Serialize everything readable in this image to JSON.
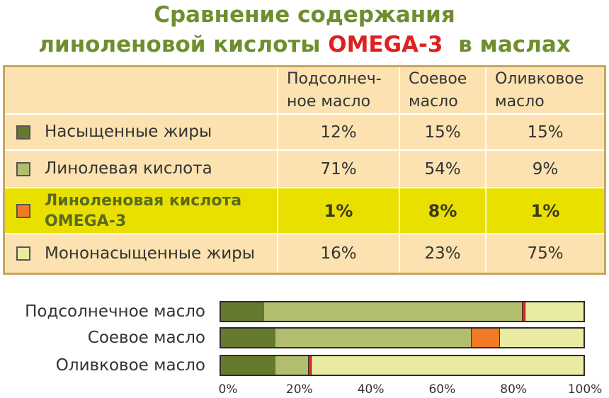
{
  "title": {
    "line1": "Сравнение содержания",
    "line2_before": "линоленовой кислоты ",
    "line2_omega": "OMEGA-3",
    "line2_after": "  в маслах"
  },
  "colors": {
    "saturated": "#667a2e",
    "linoleic": "#b2bd6e",
    "omega3": "#f07b24",
    "monounsaturated": "#eaeba2",
    "title": "#6f8e2e",
    "omega_text": "#e0201e",
    "table_bg": "#fbe2b0",
    "highlight_bg": "#eae000"
  },
  "table": {
    "columns": [
      "Подсолнеч-\nное масло",
      "Соевое\nмасло",
      "Оливковое\nмасло"
    ],
    "rows": [
      {
        "label": "Насыщенные жиры",
        "swatch": "#667a2e",
        "values": [
          "12%",
          "15%",
          "15%"
        ]
      },
      {
        "label": "Линолевая кислота",
        "swatch": "#b2bd6e",
        "values": [
          "71%",
          "54%",
          "9%"
        ]
      },
      {
        "label": "Линоленовая кислота\nOMEGA-3",
        "swatch": "#f07b24",
        "values": [
          "1%",
          "8%",
          "1%"
        ],
        "highlight": true
      },
      {
        "label": "Мононасыщенные жиры",
        "swatch": "#eaeba2",
        "values": [
          "16%",
          "23%",
          "75%"
        ]
      }
    ]
  },
  "chart_data": {
    "type": "bar",
    "stacked": true,
    "orientation": "horizontal",
    "categories": [
      "Подсолнечное масло",
      "Соевое масло",
      "Оливковое масло"
    ],
    "series": [
      {
        "name": "Насыщенные жиры",
        "color": "#667a2e",
        "values": [
          12,
          15,
          15
        ]
      },
      {
        "name": "Линолевая кислота",
        "color": "#b2bd6e",
        "values": [
          71,
          54,
          9
        ]
      },
      {
        "name": "Линоленовая кислота OMEGA-3",
        "color": "#f07b24",
        "values": [
          1,
          8,
          1
        ]
      },
      {
        "name": "Мононасыщенные жиры",
        "color": "#eaeba2",
        "values": [
          16,
          23,
          75
        ]
      }
    ],
    "xlim": [
      0,
      100
    ],
    "xticks": [
      "0%",
      "20%",
      "40%",
      "60%",
      "80%",
      "100%"
    ]
  }
}
